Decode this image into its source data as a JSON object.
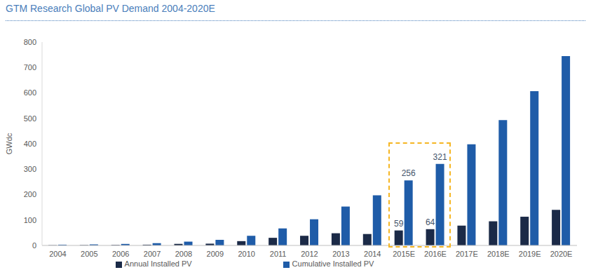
{
  "chart_data": {
    "type": "bar",
    "title": "GTM Research Global PV Demand 2004-2020E",
    "y_label": "GWdc",
    "categories": [
      "2004",
      "2005",
      "2006",
      "2007",
      "2008",
      "2009",
      "2010",
      "2011",
      "2012",
      "2013",
      "2014",
      "2015E",
      "2016E",
      "2017E",
      "2018E",
      "2019E",
      "2020E"
    ],
    "series": [
      {
        "name": "Annual Installed PV",
        "color": "#1b2a47",
        "values": [
          1,
          1.5,
          2,
          3,
          6,
          7,
          17,
          30,
          38,
          48,
          45,
          59,
          64,
          78,
          95,
          113,
          140
        ],
        "value_labels": [
          null,
          null,
          null,
          null,
          null,
          null,
          null,
          null,
          null,
          null,
          null,
          "59",
          "64",
          null,
          null,
          null,
          null
        ]
      },
      {
        "name": "Cumulative Installed PV",
        "color": "#1f5ca8",
        "values": [
          3,
          4,
          6,
          9,
          15,
          22,
          38,
          67,
          103,
          153,
          197,
          256,
          321,
          398,
          493,
          607,
          745
        ],
        "value_labels": [
          null,
          null,
          null,
          null,
          null,
          null,
          null,
          null,
          null,
          null,
          null,
          "256",
          "321",
          null,
          null,
          null,
          null
        ]
      }
    ],
    "ylim": [
      0,
      800
    ],
    "yticks": [
      0,
      100,
      200,
      300,
      400,
      500,
      600,
      700,
      800
    ],
    "grid": false,
    "legend": "bottom",
    "data_labels": true
  }
}
